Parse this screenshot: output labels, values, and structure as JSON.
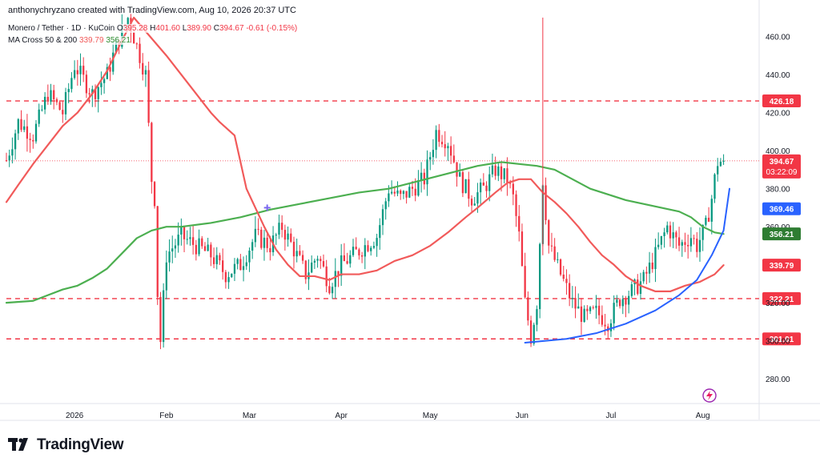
{
  "header": {
    "author": "anthonychryzano",
    "created_with": "created with TradingView.com, Aug 10, 2026 20:37 UTC"
  },
  "legend": {
    "symbol": "Monero / Tether · 1D · KuCoin",
    "open_label": "O",
    "open": "395.28",
    "high_label": "H",
    "high": "401.60",
    "low_label": "L",
    "low": "389.90",
    "close_label": "C",
    "close": "394.67",
    "change": "-0.61 (-0.15%)",
    "ma_label": "MA Cross 50 & 200",
    "ma_fast": "339.79",
    "ma_slow": "356.21"
  },
  "footer": {
    "brand": "TradingView"
  },
  "colors": {
    "up": "#089981",
    "down": "#f23645",
    "ma_fast": "#f15a5a",
    "ma_slow": "#4caf50",
    "trendline": "#2962ff",
    "level": "#f23645",
    "ma_slow_label": "#2e7d32",
    "price_label": "#f23645",
    "blue_label": "#2962ff"
  },
  "chart_data": {
    "type": "candlestick",
    "y_range": [
      267,
      470
    ],
    "y_ticks": [
      280,
      300,
      320,
      340,
      360,
      380,
      400,
      420,
      440,
      460
    ],
    "y_tick_labels": [
      "280.00",
      "300.00",
      "320.00",
      "340.00",
      "360.00",
      "380.00",
      "400.00",
      "420.00",
      "440.00",
      "460.00"
    ],
    "x_labels": [
      "2026",
      "Feb",
      "Mar",
      "Apr",
      "May",
      "Jun",
      "Jul",
      "Aug"
    ],
    "x_label_days": [
      14,
      45,
      73,
      104,
      134,
      165,
      195,
      226
    ],
    "x_range_days": [
      -9,
      245
    ],
    "last_day": 233,
    "horizontal_levels": [
      {
        "value": 426.18,
        "label": "426.18"
      },
      {
        "value": 322.21,
        "label": "322.21"
      },
      {
        "value": 301.01,
        "label": "301.01"
      }
    ],
    "price_tags": [
      {
        "value": 394.67,
        "label": "394.67",
        "sub": "03:22:09",
        "color": "price_label"
      },
      {
        "value": 369.46,
        "label": "369.46",
        "color": "blue_label"
      },
      {
        "value": 356.21,
        "label": "356.21",
        "color": "ma_slow_label"
      },
      {
        "value": 339.79,
        "label": "339.79",
        "color": "price_label"
      }
    ],
    "close_anchors": [
      [
        -9,
        395
      ],
      [
        -5,
        415
      ],
      [
        0,
        408
      ],
      [
        5,
        430
      ],
      [
        10,
        420
      ],
      [
        14,
        445
      ],
      [
        20,
        430
      ],
      [
        25,
        440
      ],
      [
        28,
        455
      ],
      [
        32,
        470
      ],
      [
        35,
        455
      ],
      [
        38,
        440
      ],
      [
        40,
        385
      ],
      [
        41,
        375
      ],
      [
        42,
        325
      ],
      [
        43,
        300
      ],
      [
        45,
        345
      ],
      [
        50,
        355
      ],
      [
        55,
        350
      ],
      [
        60,
        345
      ],
      [
        65,
        335
      ],
      [
        70,
        340
      ],
      [
        75,
        355
      ],
      [
        80,
        350
      ],
      [
        84,
        360
      ],
      [
        88,
        348
      ],
      [
        92,
        335
      ],
      [
        96,
        345
      ],
      [
        100,
        330
      ],
      [
        104,
        340
      ],
      [
        108,
        345
      ],
      [
        112,
        350
      ],
      [
        116,
        355
      ],
      [
        120,
        380
      ],
      [
        124,
        375
      ],
      [
        128,
        380
      ],
      [
        132,
        385
      ],
      [
        136,
        410
      ],
      [
        140,
        405
      ],
      [
        144,
        385
      ],
      [
        148,
        375
      ],
      [
        152,
        380
      ],
      [
        156,
        390
      ],
      [
        160,
        385
      ],
      [
        162,
        375
      ],
      [
        164,
        355
      ],
      [
        166,
        320
      ],
      [
        168,
        302
      ],
      [
        170,
        320
      ],
      [
        172,
        385
      ],
      [
        174,
        350
      ],
      [
        178,
        335
      ],
      [
        182,
        320
      ],
      [
        186,
        312
      ],
      [
        190,
        315
      ],
      [
        194,
        310
      ],
      [
        198,
        322
      ],
      [
        202,
        326
      ],
      [
        206,
        332
      ],
      [
        210,
        345
      ],
      [
        214,
        360
      ],
      [
        218,
        350
      ],
      [
        222,
        355
      ],
      [
        224,
        350
      ],
      [
        227,
        360
      ],
      [
        229,
        375
      ],
      [
        230,
        385
      ],
      [
        231,
        394
      ],
      [
        233,
        394.67
      ]
    ],
    "ma_fast_points": [
      [
        -9,
        373
      ],
      [
        -5,
        382
      ],
      [
        0,
        393
      ],
      [
        5,
        403
      ],
      [
        10,
        413
      ],
      [
        15,
        420
      ],
      [
        20,
        430
      ],
      [
        25,
        442
      ],
      [
        30,
        458
      ],
      [
        34,
        470
      ],
      [
        45,
        450
      ],
      [
        50,
        440
      ],
      [
        55,
        430
      ],
      [
        60,
        420
      ],
      [
        63,
        415
      ],
      [
        68,
        408
      ],
      [
        72,
        380
      ],
      [
        75,
        370
      ],
      [
        78,
        360
      ],
      [
        82,
        348
      ],
      [
        86,
        340
      ],
      [
        90,
        334
      ],
      [
        95,
        334
      ],
      [
        100,
        332
      ],
      [
        104,
        335
      ],
      [
        110,
        335
      ],
      [
        116,
        337
      ],
      [
        122,
        342
      ],
      [
        128,
        345
      ],
      [
        134,
        350
      ],
      [
        140,
        357
      ],
      [
        146,
        365
      ],
      [
        150,
        370
      ],
      [
        156,
        378
      ],
      [
        160,
        383
      ],
      [
        164,
        385
      ],
      [
        168,
        385
      ],
      [
        172,
        378
      ],
      [
        176,
        373
      ],
      [
        180,
        367
      ],
      [
        184,
        360
      ],
      [
        188,
        352
      ],
      [
        192,
        345
      ],
      [
        196,
        340
      ],
      [
        200,
        334
      ],
      [
        205,
        329
      ],
      [
        210,
        326
      ],
      [
        215,
        326
      ],
      [
        220,
        329
      ],
      [
        225,
        331
      ],
      [
        230,
        335
      ],
      [
        233,
        339.79
      ]
    ],
    "ma_slow_points": [
      [
        -9,
        320
      ],
      [
        0,
        321
      ],
      [
        5,
        324
      ],
      [
        10,
        327
      ],
      [
        15,
        329
      ],
      [
        20,
        333
      ],
      [
        25,
        338
      ],
      [
        30,
        346
      ],
      [
        35,
        354
      ],
      [
        40,
        358
      ],
      [
        45,
        360
      ],
      [
        50,
        360
      ],
      [
        60,
        362
      ],
      [
        70,
        365
      ],
      [
        80,
        369
      ],
      [
        90,
        372
      ],
      [
        100,
        375
      ],
      [
        110,
        378
      ],
      [
        120,
        380
      ],
      [
        130,
        384
      ],
      [
        140,
        388
      ],
      [
        150,
        392
      ],
      [
        158,
        394
      ],
      [
        164,
        393
      ],
      [
        170,
        392
      ],
      [
        176,
        390
      ],
      [
        182,
        385
      ],
      [
        188,
        380
      ],
      [
        194,
        377
      ],
      [
        200,
        374
      ],
      [
        206,
        372
      ],
      [
        212,
        370
      ],
      [
        218,
        368
      ],
      [
        222,
        365
      ],
      [
        226,
        360
      ],
      [
        230,
        357
      ],
      [
        233,
        356.21
      ]
    ],
    "trendline_points": [
      [
        166,
        299
      ],
      [
        180,
        301
      ],
      [
        190,
        304
      ],
      [
        200,
        309
      ],
      [
        210,
        316
      ],
      [
        218,
        324
      ],
      [
        224,
        332
      ],
      [
        229,
        345
      ],
      [
        233,
        358
      ],
      [
        235,
        380
      ]
    ],
    "cross_marker": {
      "day": 79,
      "value": 370
    }
  }
}
